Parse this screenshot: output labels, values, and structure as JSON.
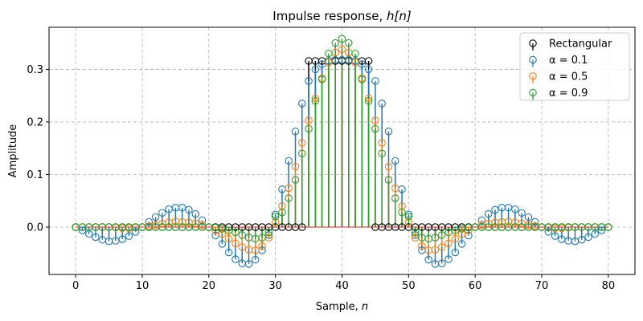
{
  "chart_data": {
    "type": "stem",
    "title_text": "Impulse response, ",
    "title_math": "h[n]",
    "xlabel_text": "Sample, ",
    "xlabel_math": "n",
    "ylabel": "Amplitude",
    "xlim": [
      -4,
      84
    ],
    "ylim": [
      -0.09,
      0.38
    ],
    "xticks": [
      0,
      10,
      20,
      30,
      40,
      50,
      60,
      70,
      80
    ],
    "yticks": [
      0.0,
      0.1,
      0.2,
      0.3
    ],
    "ytick_labels": [
      "0.0",
      "0.1",
      "0.2",
      "0.3"
    ],
    "grid": true,
    "legend_position": "top-right",
    "x": [
      0,
      1,
      2,
      3,
      4,
      5,
      6,
      7,
      8,
      9,
      10,
      11,
      12,
      13,
      14,
      15,
      16,
      17,
      18,
      19,
      20,
      21,
      22,
      23,
      24,
      25,
      26,
      27,
      28,
      29,
      30,
      31,
      32,
      33,
      34,
      35,
      36,
      37,
      38,
      39,
      40,
      41,
      42,
      43,
      44,
      45,
      46,
      47,
      48,
      49,
      50,
      51,
      52,
      53,
      54,
      55,
      56,
      57,
      58,
      59,
      60,
      61,
      62,
      63,
      64,
      65,
      66,
      67,
      68,
      69,
      70,
      71,
      72,
      73,
      74,
      75,
      76,
      77,
      78,
      79,
      80
    ],
    "series": [
      {
        "name": "Rectangular",
        "color": "#000000",
        "values": [
          0,
          0,
          0,
          0,
          0,
          0,
          0,
          0,
          0,
          0,
          0,
          0,
          0,
          0,
          0,
          0,
          0,
          0,
          0,
          0,
          0,
          0,
          0,
          0,
          0,
          0,
          0,
          0,
          0,
          0,
          0,
          0,
          0,
          0,
          0,
          0.316,
          0.316,
          0.316,
          0.316,
          0.316,
          0.316,
          0.316,
          0.316,
          0.316,
          0.316,
          0,
          0,
          0,
          0,
          0,
          0,
          0,
          0,
          0,
          0,
          0,
          0,
          0,
          0,
          0,
          0,
          0,
          0,
          0,
          0,
          0,
          0,
          0,
          0,
          0,
          0,
          0,
          0,
          0,
          0,
          0,
          0,
          0,
          0,
          0,
          0
        ]
      },
      {
        "name": "α = 0.1",
        "color": "#1f77b4",
        "values": [
          0,
          -0.006,
          -0.013,
          -0.019,
          -0.024,
          -0.027,
          -0.026,
          -0.023,
          -0.017,
          -0.009,
          0,
          0.01,
          0.019,
          0.027,
          0.034,
          0.037,
          0.037,
          0.033,
          0.025,
          0.013,
          0,
          -0.016,
          -0.032,
          -0.048,
          -0.061,
          -0.069,
          -0.07,
          -0.062,
          -0.044,
          -0.015,
          0.024,
          0.072,
          0.126,
          0.182,
          0.235,
          0.278,
          0.3,
          0.31,
          0.316,
          0.318,
          0.318,
          0.318,
          0.316,
          0.31,
          0.3,
          0.278,
          0.235,
          0.182,
          0.126,
          0.072,
          0.024,
          -0.015,
          -0.044,
          -0.062,
          -0.07,
          -0.069,
          -0.061,
          -0.048,
          -0.032,
          -0.016,
          0,
          0.013,
          0.025,
          0.033,
          0.037,
          0.037,
          0.034,
          0.027,
          0.019,
          0.01,
          0,
          -0.009,
          -0.017,
          -0.023,
          -0.026,
          -0.027,
          -0.024,
          -0.019,
          -0.013,
          -0.006,
          0
        ]
      },
      {
        "name": "α = 0.5",
        "color": "#ff7f0e",
        "values": [
          0,
          0,
          0,
          0,
          0,
          0,
          -0.001,
          -0.002,
          -0.002,
          -0.001,
          0,
          0.002,
          0.004,
          0.007,
          0.009,
          0.011,
          0.01,
          0.009,
          0.007,
          0.004,
          0,
          -0.006,
          -0.013,
          -0.022,
          -0.031,
          -0.038,
          -0.043,
          -0.044,
          -0.036,
          -0.02,
          0.01,
          0.04,
          0.074,
          0.115,
          0.16,
          0.203,
          0.245,
          0.283,
          0.313,
          0.332,
          0.338,
          0.332,
          0.313,
          0.283,
          0.245,
          0.203,
          0.16,
          0.115,
          0.074,
          0.04,
          0.01,
          -0.02,
          -0.036,
          -0.044,
          -0.043,
          -0.038,
          -0.031,
          -0.022,
          -0.013,
          -0.006,
          0,
          0.004,
          0.007,
          0.009,
          0.01,
          0.011,
          0.009,
          0.007,
          0.004,
          0.002,
          0,
          -0.001,
          -0.002,
          -0.002,
          -0.001,
          0,
          0,
          0,
          0,
          0,
          0
        ]
      },
      {
        "name": "α = 0.9",
        "color": "#2ca02c",
        "values": [
          0,
          0,
          0,
          0,
          0,
          0,
          0,
          0,
          0,
          0,
          0,
          0,
          0,
          0,
          0,
          0,
          0,
          0,
          0,
          0,
          0,
          -0.001,
          -0.003,
          -0.006,
          -0.01,
          -0.015,
          -0.02,
          -0.022,
          -0.02,
          -0.01,
          0.02,
          0.028,
          0.055,
          0.09,
          0.14,
          0.187,
          0.24,
          0.281,
          0.33,
          0.35,
          0.358,
          0.35,
          0.33,
          0.281,
          0.24,
          0.187,
          0.14,
          0.09,
          0.055,
          0.028,
          0.02,
          -0.01,
          -0.02,
          -0.022,
          -0.02,
          -0.015,
          -0.01,
          -0.006,
          -0.003,
          -0.001,
          0,
          0,
          0,
          0,
          0,
          0,
          0,
          0,
          0,
          0,
          0,
          0,
          0,
          0,
          0,
          0,
          0,
          0,
          0,
          0,
          0
        ]
      }
    ]
  }
}
